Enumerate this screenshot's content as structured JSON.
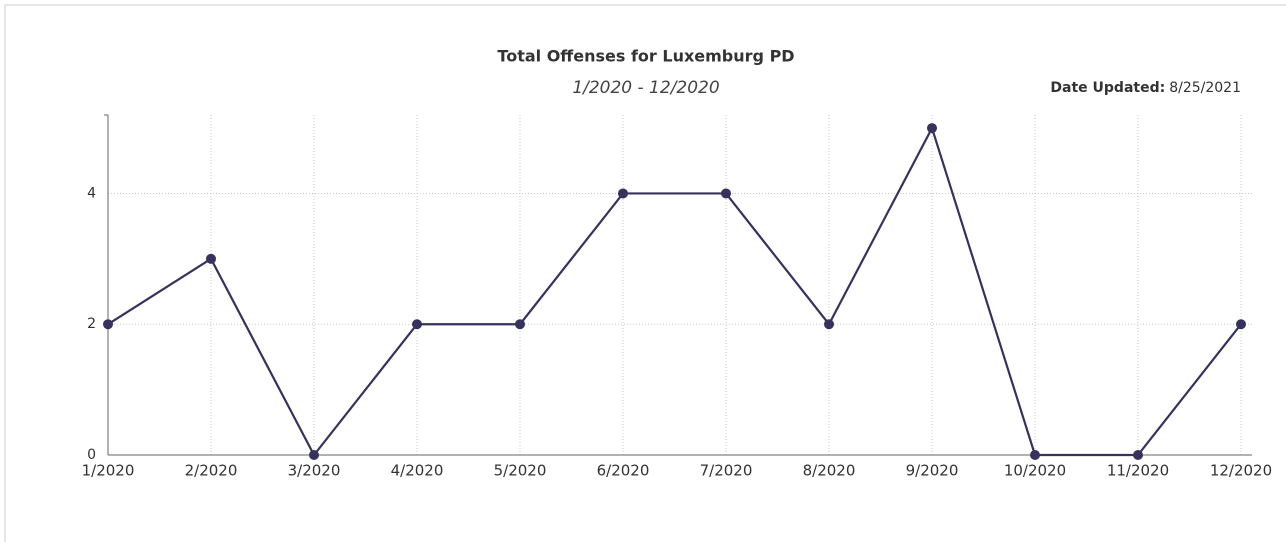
{
  "chart_data": {
    "type": "line",
    "title": "Total Offenses for Luxemburg PD",
    "subtitle": "1/2020 - 12/2020",
    "date_updated_label": "Date Updated:",
    "date_updated": "8/25/2021",
    "categories": [
      "1/2020",
      "2/2020",
      "3/2020",
      "4/2020",
      "5/2020",
      "6/2020",
      "7/2020",
      "8/2020",
      "9/2020",
      "10/2020",
      "11/2020",
      "12/2020"
    ],
    "series": [
      {
        "name": "Total Offenses",
        "color": "#37325c",
        "values": [
          2,
          3,
          0,
          2,
          2,
          4,
          4,
          2,
          5,
          0,
          0,
          2
        ]
      }
    ],
    "ylim": [
      0,
      5.2
    ],
    "yticks": [
      0,
      2,
      4
    ],
    "grid": true
  }
}
